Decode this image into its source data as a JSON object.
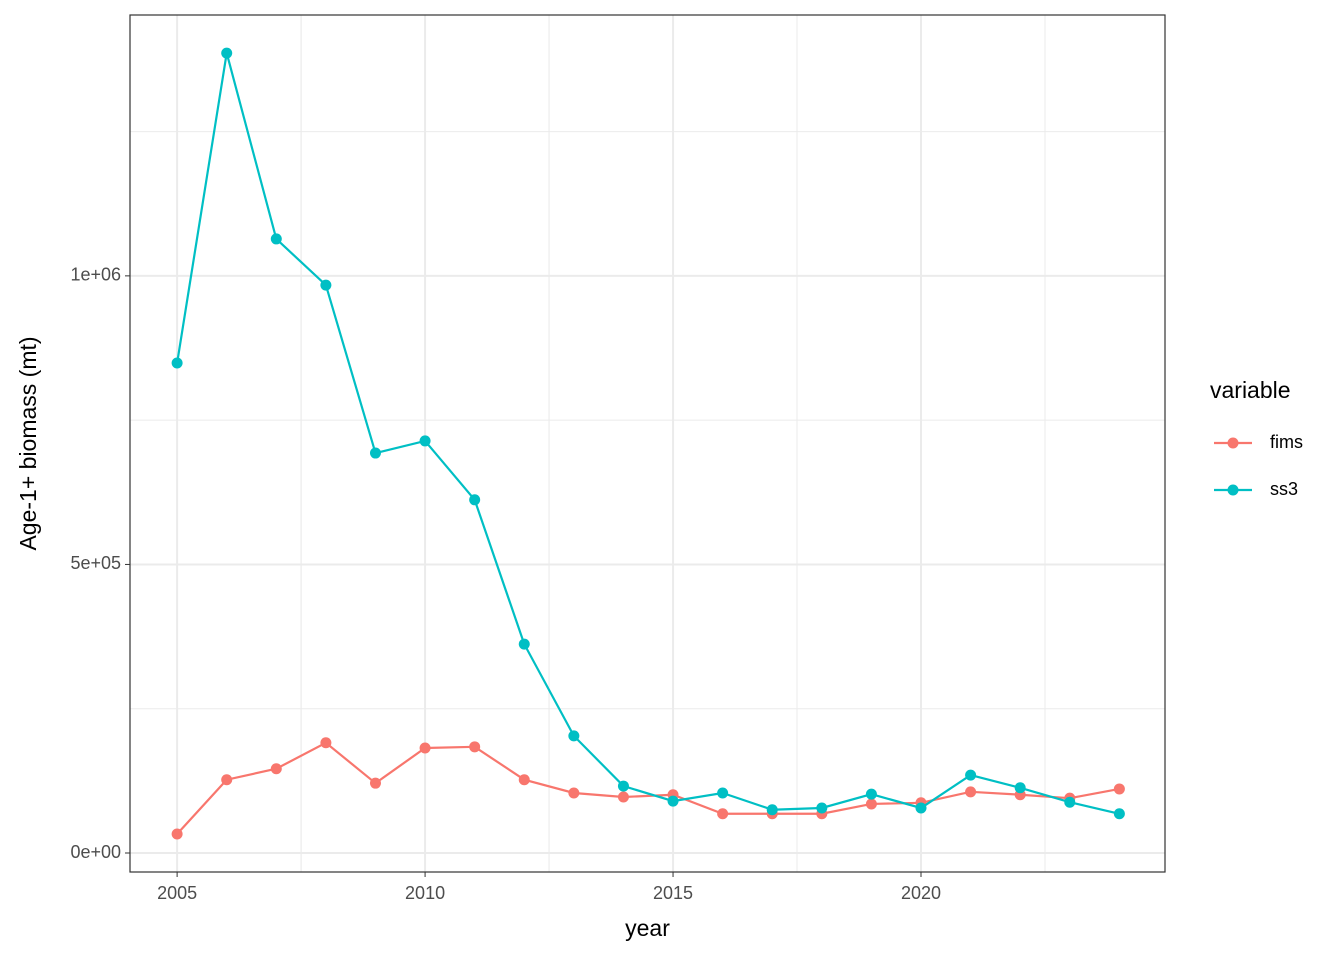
{
  "chart_data": {
    "type": "line",
    "x_label": "year",
    "y_label": "Age-1+ biomass (mt)",
    "x": [
      2005,
      2006,
      2007,
      2008,
      2009,
      2010,
      2011,
      2012,
      2013,
      2014,
      2015,
      2016,
      2017,
      2018,
      2019,
      2020,
      2021,
      2022,
      2023,
      2024
    ],
    "series": [
      {
        "name": "fims",
        "color": "#F8766D",
        "values": [
          33000,
          127000,
          146000,
          191000,
          121000,
          182000,
          184000,
          127000,
          104000,
          97000,
          101000,
          68000,
          68000,
          68000,
          85000,
          87000,
          106000,
          101000,
          95000,
          111000
        ]
      },
      {
        "name": "ss3",
        "color": "#00BFC4",
        "values": [
          849000,
          1386000,
          1064000,
          984000,
          693000,
          714000,
          612000,
          362000,
          203000,
          116000,
          90000,
          104000,
          75000,
          78000,
          102000,
          78000,
          135000,
          113000,
          88000,
          68000
        ]
      }
    ],
    "xlim": [
      2004.05,
      2024.92
    ],
    "ylim": [
      -32900,
      1452000
    ],
    "xticks": [
      2005,
      2010,
      2015,
      2020
    ],
    "yticks": [
      {
        "value": 0,
        "label": "0e+00"
      },
      {
        "value": 500000,
        "label": "5e+05"
      },
      {
        "value": 1000000,
        "label": "1e+06"
      }
    ],
    "legend_title": "variable",
    "grid": true
  }
}
